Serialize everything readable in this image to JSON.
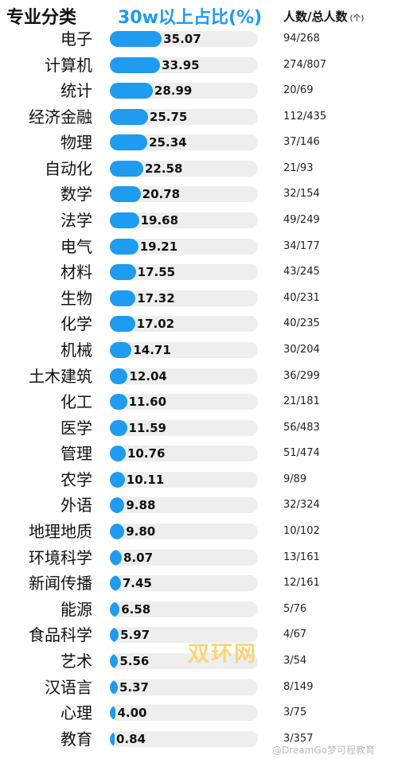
{
  "header": {
    "major": "专业分类",
    "share": "30w以上占比(%)",
    "count": "人数/总人数",
    "count_unit": "(个)"
  },
  "colors": {
    "bar": "#1f9bf0",
    "track": "#eeeeef",
    "header_accent": "#1f9bf0"
  },
  "chart_data": {
    "type": "bar",
    "orientation": "horizontal",
    "categories": [
      "电子",
      "计算机",
      "统计",
      "经济金融",
      "物理",
      "自动化",
      "数学",
      "法学",
      "电气",
      "材料",
      "生物",
      "化学",
      "机械",
      "土木建筑",
      "化工",
      "医学",
      "管理",
      "农学",
      "外语",
      "地理地质",
      "环境科学",
      "新闻传播",
      "能源",
      "食品科学",
      "艺术",
      "汉语言",
      "心理",
      "教育"
    ],
    "value_labels": [
      "35.07",
      "33.95",
      "28.99",
      "25.75",
      "25.34",
      "22.58",
      "20.78",
      "19.68",
      "19.21",
      "17.55",
      "17.32",
      "17.02",
      "14.71",
      "12.04",
      "11.60",
      "11.59",
      "10.76",
      "10.11",
      "9.88",
      "9.80",
      "8.07",
      "7.45",
      "6.58",
      "5.97",
      "5.56",
      "5.37",
      "4.00",
      "0.84"
    ],
    "values": [
      35.07,
      33.95,
      28.99,
      25.75,
      25.34,
      22.58,
      20.78,
      19.68,
      19.21,
      17.55,
      17.32,
      17.02,
      14.71,
      12.04,
      11.6,
      11.59,
      10.76,
      10.11,
      9.88,
      9.8,
      8.07,
      7.45,
      6.58,
      5.97,
      5.56,
      5.37,
      4.0,
      0.84
    ],
    "counts": [
      "94/268",
      "274/807",
      "20/69",
      "112/435",
      "37/146",
      "21/93",
      "32/154",
      "49/249",
      "34/177",
      "43/245",
      "40/231",
      "40/235",
      "30/204",
      "36/299",
      "21/181",
      "56/483",
      "51/474",
      "9/89",
      "32/324",
      "10/102",
      "13/161",
      "12/161",
      "5/76",
      "4/67",
      "3/54",
      "8/149",
      "3/75",
      "3/357"
    ],
    "xlim": [
      0,
      100
    ],
    "grid": false,
    "legend": "none"
  },
  "watermark": {
    "logo": "双环网",
    "text": "@DreamGo梦可程教育"
  }
}
